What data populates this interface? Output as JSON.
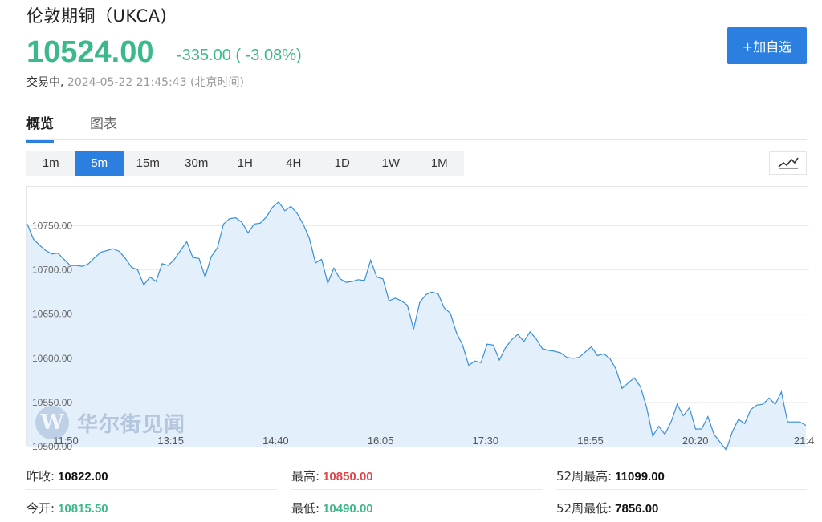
{
  "header": {
    "title": "伦敦期铜（UKCA)",
    "price": "10524.00",
    "change": "-335.00 ( -3.08%)",
    "status_label": "交易中,",
    "timestamp": "2024-05-22 21:45:43 (北京时间)",
    "watchlist_button": "+加自选"
  },
  "tabs": [
    {
      "label": "概览",
      "active": true
    },
    {
      "label": "图表",
      "active": false
    }
  ],
  "periods": [
    {
      "label": "1m",
      "active": false
    },
    {
      "label": "5m",
      "active": true
    },
    {
      "label": "15m",
      "active": false
    },
    {
      "label": "30m",
      "active": false
    },
    {
      "label": "1H",
      "active": false
    },
    {
      "label": "4H",
      "active": false
    },
    {
      "label": "1D",
      "active": false
    },
    {
      "label": "1W",
      "active": false
    },
    {
      "label": "1M",
      "active": false
    }
  ],
  "chart_toggle_icon": "line-chart-icon",
  "watermark": {
    "logo_letter": "W",
    "text": "华尔街见闻"
  },
  "colors": {
    "accent": "#2b7fe0",
    "up": "#e0474c",
    "down": "#3cb98b",
    "line": "#3a8fd8",
    "fill": "#e3effb"
  },
  "stats": {
    "prev_close": {
      "label": "昨收:",
      "value": "10822.00"
    },
    "open": {
      "label": "今开:",
      "value": "10815.50"
    },
    "high": {
      "label": "最高:",
      "value": "10850.00"
    },
    "low": {
      "label": "最低:",
      "value": "10490.00"
    },
    "high_52w": {
      "label": "52周最高:",
      "value": "11099.00"
    },
    "low_52w": {
      "label": "52周最低:",
      "value": "7856.00"
    }
  },
  "chart_data": {
    "type": "area",
    "title": "",
    "xlabel": "",
    "ylabel": "",
    "ylim": [
      10500,
      10785
    ],
    "y_ticks": [
      10750,
      10700,
      10650,
      10600,
      10550,
      10500
    ],
    "y_tick_labels": [
      "10750.00",
      "10700.00",
      "10650.00",
      "10600.00",
      "10550.00",
      "10500.00"
    ],
    "x_tick_labels": [
      "11:50",
      "13:15",
      "14:40",
      "16:05",
      "17:30",
      "18:55",
      "20:20",
      "21:4"
    ],
    "grid": true,
    "series": [
      {
        "values": [
          10752,
          10735,
          10728,
          10722,
          10718,
          10719,
          10712,
          10705,
          10705,
          10704,
          10707,
          10714,
          10720,
          10722,
          10724,
          10721,
          10713,
          10703,
          10700,
          10683,
          10692,
          10687,
          10707,
          10705,
          10712,
          10722,
          10732,
          10714,
          10713,
          10692,
          10715,
          10725,
          10752,
          10758,
          10759,
          10754,
          10742,
          10752,
          10753,
          10760,
          10771,
          10777,
          10767,
          10772,
          10764,
          10752,
          10736,
          10708,
          10712,
          10685,
          10702,
          10690,
          10686,
          10687,
          10689,
          10688,
          10711,
          10692,
          10690,
          10665,
          10668,
          10665,
          10660,
          10633,
          10663,
          10672,
          10675,
          10673,
          10657,
          10651,
          10629,
          10615,
          10592,
          10597,
          10595,
          10616,
          10615,
          10598,
          10612,
          10621,
          10627,
          10619,
          10630,
          10622,
          10611,
          10609,
          10608,
          10606,
          10601,
          10600,
          10601,
          10607,
          10613,
          10603,
          10605,
          10600,
          10588,
          10566,
          10572,
          10578,
          10568,
          10545,
          10512,
          10523,
          10514,
          10528,
          10548,
          10535,
          10544,
          10520,
          10520,
          10534,
          10514,
          10505,
          10496,
          10517,
          10531,
          10526,
          10542,
          10547,
          10548,
          10555,
          10548,
          10562,
          10528,
          10528,
          10528,
          10524
        ]
      }
    ]
  }
}
